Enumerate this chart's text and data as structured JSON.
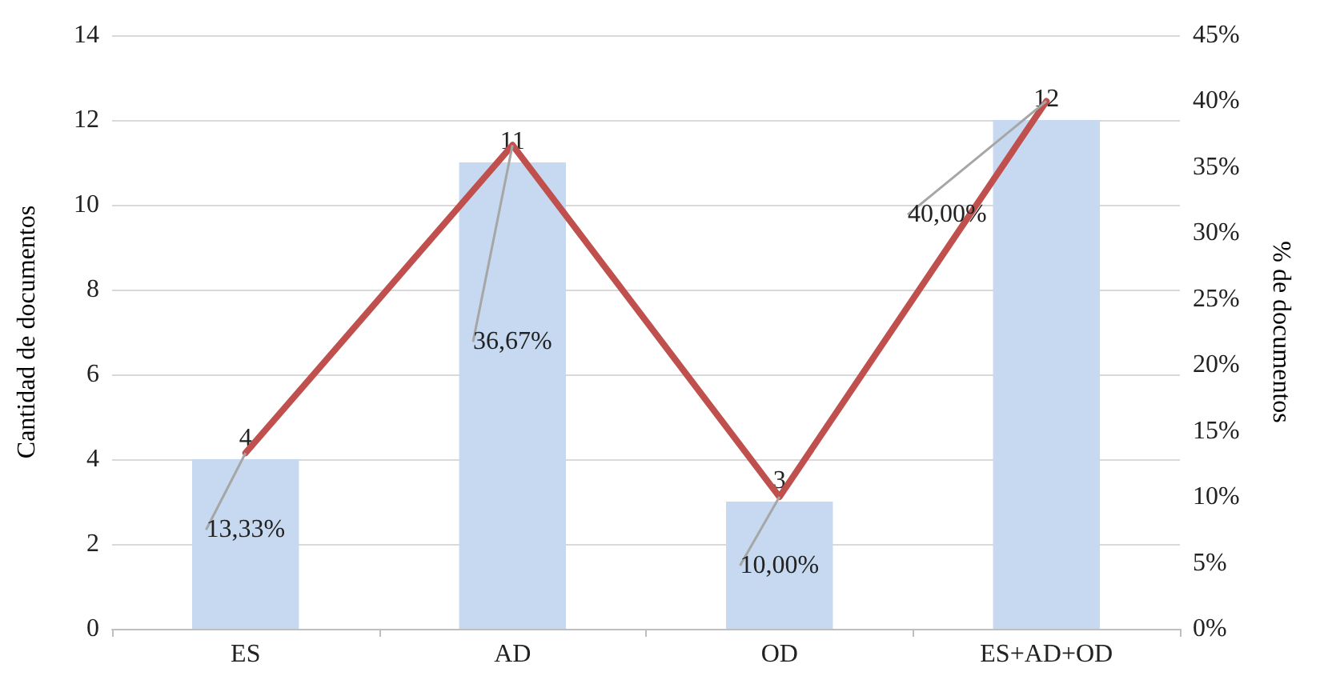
{
  "chart_data": {
    "type": "bar",
    "categories": [
      "ES",
      "AD",
      "OD",
      "ES+AD+OD"
    ],
    "series": [
      {
        "color": "#c6d9f0",
        "values": [
          4,
          11,
          3,
          12
        ],
        "value_labels": [
          "4",
          "11",
          "3",
          "12"
        ]
      },
      {
        "type": "line",
        "axis": "y2",
        "color": "#c0504d",
        "values": [
          13.33,
          36.67,
          10,
          40
        ],
        "value_labels": [
          "13,33%",
          "36,67%",
          "10,00%",
          "40,00%"
        ]
      }
    ],
    "ylabel": "Cantidad de documentos",
    "y2label": "% de documentos",
    "ylim": [
      0,
      14
    ],
    "yticks": [
      0,
      2,
      4,
      6,
      8,
      10,
      12,
      14
    ],
    "y2lim": [
      0,
      45
    ],
    "y2ticks": [
      {
        "value": 0,
        "label": "0%"
      },
      {
        "value": 5,
        "label": "5%"
      },
      {
        "value": 10,
        "label": "10%"
      },
      {
        "value": 15,
        "label": "15%"
      },
      {
        "value": 20,
        "label": "20%"
      },
      {
        "value": 25,
        "label": "25%"
      },
      {
        "value": 30,
        "label": "30%"
      },
      {
        "value": 35,
        "label": "35%"
      },
      {
        "value": 40,
        "label": "40%"
      },
      {
        "value": 45,
        "label": "45%"
      }
    ],
    "grid": "y",
    "marker": "none",
    "line_style": "solid"
  }
}
